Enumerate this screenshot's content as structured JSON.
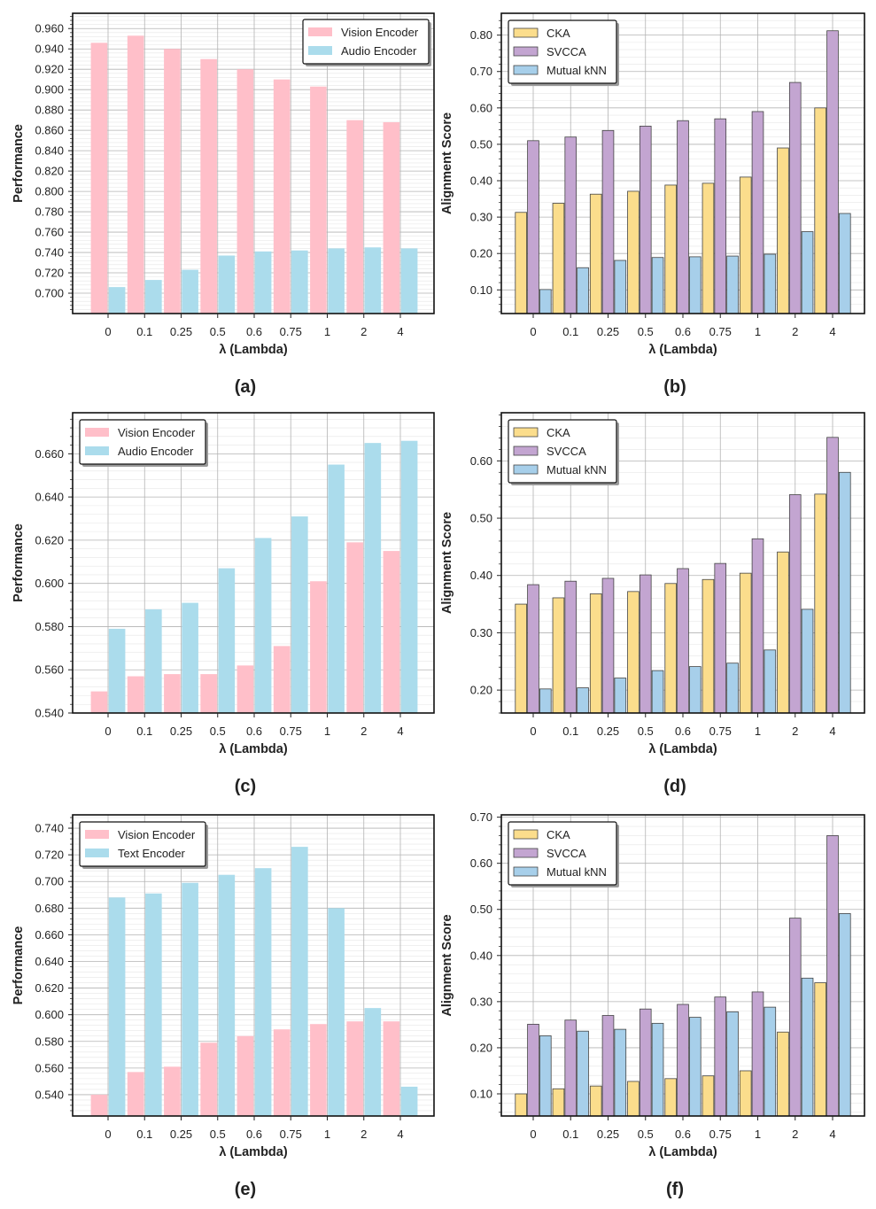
{
  "figure": {
    "colors": {
      "vision": "#ffbfc9",
      "audio": "#abdcec",
      "text": "#abdcec",
      "cka": "#fbdd8c",
      "svcca": "#c3a5d1",
      "mknn": "#a7cfea",
      "grid": "#b3b3b3",
      "edge": "#444444"
    }
  },
  "chart_data": [
    {
      "id": "a",
      "caption": "(a)",
      "type": "bar",
      "categories": [
        "0",
        "0.1",
        "0.25",
        "0.5",
        "0.6",
        "0.75",
        "1",
        "2",
        "4"
      ],
      "xlabel": "λ (Lambda)",
      "ylabel": "Performance",
      "ylim": [
        0.68,
        0.975
      ],
      "yticks": [
        0.7,
        0.72,
        0.74,
        0.76,
        0.78,
        0.8,
        0.82,
        0.84,
        0.86,
        0.88,
        0.9,
        0.92,
        0.94,
        0.96
      ],
      "ytick_labels": [
        "0.700",
        "0.720",
        "0.740",
        "0.760",
        "0.780",
        "0.800",
        "0.820",
        "0.840",
        "0.860",
        "0.880",
        "0.900",
        "0.920",
        "0.940",
        "0.960"
      ],
      "legend_position": "top-right",
      "grid": true,
      "series": [
        {
          "name": "Vision Encoder",
          "color_key": "vision",
          "values": [
            0.946,
            0.953,
            0.94,
            0.93,
            0.92,
            0.91,
            0.903,
            0.87,
            0.868
          ]
        },
        {
          "name": "Audio Encoder",
          "color_key": "audio",
          "values": [
            0.706,
            0.713,
            0.723,
            0.737,
            0.741,
            0.742,
            0.744,
            0.745,
            0.744
          ]
        }
      ]
    },
    {
      "id": "b",
      "caption": "(b)",
      "type": "bar",
      "categories": [
        "0",
        "0.1",
        "0.25",
        "0.5",
        "0.6",
        "0.75",
        "1",
        "2",
        "4"
      ],
      "xlabel": "λ (Lambda)",
      "ylabel": "Alignment Score",
      "ylim": [
        0.035,
        0.86
      ],
      "yticks": [
        0.1,
        0.2,
        0.3,
        0.4,
        0.5,
        0.6,
        0.7,
        0.8
      ],
      "ytick_labels": [
        "0.10",
        "0.20",
        "0.30",
        "0.40",
        "0.50",
        "0.60",
        "0.70",
        "0.80"
      ],
      "legend_position": "top-left",
      "grid": true,
      "series": [
        {
          "name": "CKA",
          "color_key": "cka",
          "values": [
            0.313,
            0.338,
            0.363,
            0.371,
            0.388,
            0.393,
            0.41,
            0.49,
            0.6
          ]
        },
        {
          "name": "SVCCA",
          "color_key": "svcca",
          "values": [
            0.51,
            0.52,
            0.538,
            0.55,
            0.565,
            0.57,
            0.59,
            0.67,
            0.812
          ]
        },
        {
          "name": "Mutual kNN",
          "color_key": "mknn",
          "values": [
            0.101,
            0.161,
            0.181,
            0.189,
            0.191,
            0.193,
            0.198,
            0.26,
            0.31
          ]
        }
      ]
    },
    {
      "id": "c",
      "caption": "(c)",
      "type": "bar",
      "categories": [
        "0",
        "0.1",
        "0.25",
        "0.5",
        "0.6",
        "0.75",
        "1",
        "2",
        "4"
      ],
      "xlabel": "λ (Lambda)",
      "ylabel": "Performance",
      "ylim": [
        0.54,
        0.679
      ],
      "yticks": [
        0.54,
        0.56,
        0.58,
        0.6,
        0.62,
        0.64,
        0.66
      ],
      "ytick_labels": [
        "0.540",
        "0.560",
        "0.580",
        "0.600",
        "0.620",
        "0.640",
        "0.660"
      ],
      "legend_position": "top-left",
      "grid": true,
      "series": [
        {
          "name": "Vision Encoder",
          "color_key": "vision",
          "values": [
            0.55,
            0.557,
            0.558,
            0.558,
            0.562,
            0.571,
            0.601,
            0.619,
            0.615
          ]
        },
        {
          "name": "Audio Encoder",
          "color_key": "audio",
          "values": [
            0.579,
            0.588,
            0.591,
            0.607,
            0.621,
            0.631,
            0.655,
            0.665,
            0.666
          ]
        }
      ]
    },
    {
      "id": "d",
      "caption": "(d)",
      "type": "bar",
      "categories": [
        "0",
        "0.1",
        "0.25",
        "0.5",
        "0.6",
        "0.75",
        "1",
        "2",
        "4"
      ],
      "xlabel": "λ (Lambda)",
      "ylabel": "Alignment Score",
      "ylim": [
        0.16,
        0.684
      ],
      "yticks": [
        0.2,
        0.3,
        0.4,
        0.5,
        0.6
      ],
      "ytick_labels": [
        "0.20",
        "0.30",
        "0.40",
        "0.50",
        "0.60"
      ],
      "legend_position": "top-left",
      "grid": true,
      "series": [
        {
          "name": "CKA",
          "color_key": "cka",
          "values": [
            0.35,
            0.361,
            0.368,
            0.372,
            0.386,
            0.393,
            0.404,
            0.441,
            0.542
          ]
        },
        {
          "name": "SVCCA",
          "color_key": "svcca",
          "values": [
            0.384,
            0.39,
            0.395,
            0.401,
            0.412,
            0.421,
            0.464,
            0.541,
            0.641
          ]
        },
        {
          "name": "Mutual kNN",
          "color_key": "mknn",
          "values": [
            0.202,
            0.204,
            0.221,
            0.234,
            0.241,
            0.247,
            0.27,
            0.341,
            0.58
          ]
        }
      ]
    },
    {
      "id": "e",
      "caption": "(e)",
      "type": "bar",
      "categories": [
        "0",
        "0.1",
        "0.25",
        "0.5",
        "0.6",
        "0.75",
        "1",
        "2",
        "4"
      ],
      "xlabel": "λ (Lambda)",
      "ylabel": "Performance",
      "ylim": [
        0.524,
        0.75
      ],
      "yticks": [
        0.54,
        0.56,
        0.58,
        0.6,
        0.62,
        0.64,
        0.66,
        0.68,
        0.7,
        0.72,
        0.74
      ],
      "ytick_labels": [
        "0.540",
        "0.560",
        "0.580",
        "0.600",
        "0.620",
        "0.640",
        "0.660",
        "0.680",
        "0.700",
        "0.720",
        "0.740"
      ],
      "legend_position": "top-left",
      "grid": true,
      "series": [
        {
          "name": "Vision Encoder",
          "color_key": "vision",
          "values": [
            0.54,
            0.557,
            0.561,
            0.579,
            0.584,
            0.589,
            0.593,
            0.595,
            0.595
          ]
        },
        {
          "name": "Text Encoder",
          "color_key": "text",
          "values": [
            0.688,
            0.691,
            0.699,
            0.705,
            0.71,
            0.726,
            0.68,
            0.605,
            0.546
          ]
        }
      ]
    },
    {
      "id": "f",
      "caption": "(f)",
      "type": "bar",
      "categories": [
        "0",
        "0.1",
        "0.25",
        "0.5",
        "0.6",
        "0.75",
        "1",
        "2",
        "4"
      ],
      "xlabel": "λ (Lambda)",
      "ylabel": "Alignment Score",
      "ylim": [
        0.052,
        0.705
      ],
      "yticks": [
        0.1,
        0.2,
        0.3,
        0.4,
        0.5,
        0.6,
        0.7
      ],
      "ytick_labels": [
        "0.10",
        "0.20",
        "0.30",
        "0.40",
        "0.50",
        "0.60",
        "0.70"
      ],
      "legend_position": "top-left",
      "grid": true,
      "series": [
        {
          "name": "CKA",
          "color_key": "cka",
          "values": [
            0.1,
            0.111,
            0.117,
            0.127,
            0.133,
            0.139,
            0.15,
            0.234,
            0.341
          ]
        },
        {
          "name": "SVCCA",
          "color_key": "svcca",
          "values": [
            0.251,
            0.26,
            0.27,
            0.284,
            0.294,
            0.31,
            0.321,
            0.481,
            0.66
          ]
        },
        {
          "name": "Mutual kNN",
          "color_key": "mknn",
          "values": [
            0.226,
            0.236,
            0.24,
            0.253,
            0.266,
            0.278,
            0.288,
            0.351,
            0.491
          ]
        }
      ]
    }
  ]
}
